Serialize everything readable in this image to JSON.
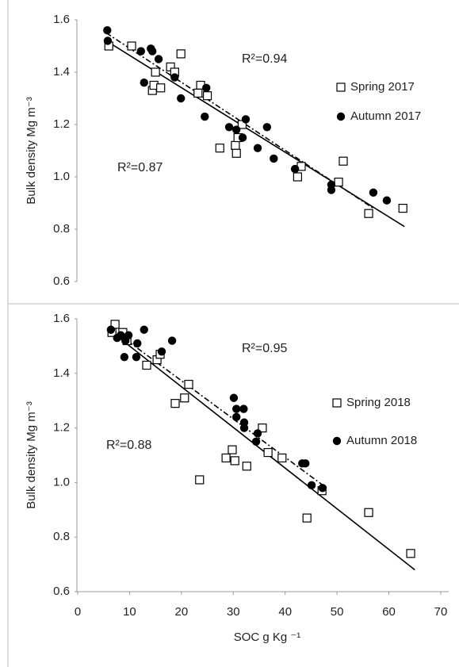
{
  "chart_data": [
    {
      "type": "scatter",
      "ylabel": "Bulk density Mg m⁻³",
      "xlim": [
        0,
        70
      ],
      "ylim": [
        0.6,
        1.6
      ],
      "yticks": [
        0.6,
        0.8,
        {
          "value": 1,
          "label": "1.0"
        },
        1.2,
        1.4,
        1.6
      ],
      "annotations": [
        "R²=0.94",
        "R²=0.87"
      ],
      "series": [
        {
          "name": "Spring 2017",
          "marker": "square",
          "color": "#000000",
          "x": [
            6,
            10.4,
            15,
            14.4,
            14.7,
            16,
            17.9,
            18.7,
            19.9,
            23.7,
            24,
            25,
            23.2,
            27.4,
            30.4,
            30.6,
            31.7,
            30.9,
            42.4,
            43.1,
            51.2,
            50.3,
            56.1,
            62.7
          ],
          "values": [
            1.5,
            1.5,
            1.4,
            1.33,
            1.35,
            1.34,
            1.42,
            1.4,
            1.47,
            1.35,
            1.32,
            1.31,
            1.32,
            1.11,
            1.12,
            1.09,
            1.2,
            1.15,
            1.0,
            1.04,
            1.06,
            0.98,
            0.86,
            0.88
          ]
        },
        {
          "name": "Autumn 2017",
          "marker": "circle",
          "color": "#000000",
          "x": [
            5.7,
            5.8,
            12.2,
            14.1,
            14.4,
            15.6,
            12.8,
            18.7,
            19.9,
            24.5,
            24.8,
            29.2,
            30.6,
            31.8,
            32.4,
            34.7,
            36.5,
            37.8,
            41.9,
            48.9,
            48.9,
            57,
            59.6
          ],
          "values": [
            1.56,
            1.52,
            1.48,
            1.49,
            1.48,
            1.45,
            1.36,
            1.38,
            1.3,
            1.23,
            1.34,
            1.19,
            1.18,
            1.15,
            1.22,
            1.11,
            1.19,
            1.07,
            1.03,
            0.97,
            0.95,
            0.94,
            0.91
          ]
        }
      ],
      "trendlines": [
        {
          "style": "dashdot",
          "x": [
            5.5,
            57
          ],
          "values": [
            1.55,
            0.88
          ]
        },
        {
          "style": "solid",
          "x": [
            5.5,
            63
          ],
          "values": [
            1.52,
            0.81
          ]
        }
      ]
    },
    {
      "type": "scatter",
      "ylabel": "Bulk density Mg m⁻³",
      "xlabel": "SOC g Kg ⁻¹",
      "xlim": [
        0,
        70
      ],
      "ylim": [
        0.6,
        1.6
      ],
      "xticks": [
        0,
        10,
        20,
        30,
        40,
        50,
        60,
        70
      ],
      "yticks": [
        0.6,
        0.8,
        {
          "value": 1,
          "label": "1.0"
        },
        1.2,
        1.4,
        1.6
      ],
      "annotations": [
        "R²=0.95",
        "R²=0.88"
      ],
      "series": [
        {
          "name": "Spring 2018",
          "marker": "square",
          "color": "#000000",
          "x": [
            7.2,
            6.6,
            8.7,
            9.5,
            13.3,
            15.3,
            15.9,
            18.8,
            20.6,
            21.4,
            23.5,
            28.6,
            29.8,
            30.3,
            32.6,
            35.6,
            36.7,
            39.4,
            44.2,
            47.1,
            56.1,
            64.2
          ],
          "values": [
            1.58,
            1.55,
            1.55,
            1.52,
            1.43,
            1.45,
            1.47,
            1.29,
            1.31,
            1.36,
            1.01,
            1.09,
            1.12,
            1.08,
            1.06,
            1.2,
            1.11,
            1.09,
            0.87,
            0.97,
            0.89,
            0.74
          ]
        },
        {
          "name": "Autumn 2018",
          "marker": "circle",
          "color": "#000000",
          "x": [
            6.4,
            7.6,
            8.3,
            9.2,
            9.8,
            9,
            11.5,
            12.8,
            11.3,
            16.2,
            18.2,
            30.1,
            30.6,
            30.6,
            32,
            32.1,
            32.1,
            34.7,
            34.4,
            43.3,
            43.9,
            45.1,
            47.2
          ],
          "values": [
            1.56,
            1.53,
            1.54,
            1.52,
            1.54,
            1.46,
            1.51,
            1.56,
            1.46,
            1.48,
            1.52,
            1.31,
            1.27,
            1.24,
            1.27,
            1.22,
            1.2,
            1.18,
            1.15,
            1.07,
            1.07,
            0.99,
            0.98
          ]
        }
      ],
      "trendlines": [
        {
          "style": "dashdot",
          "x": [
            6,
            48
          ],
          "values": [
            1.57,
            0.98
          ]
        },
        {
          "style": "solid",
          "x": [
            6,
            65
          ],
          "values": [
            1.56,
            0.68
          ]
        }
      ]
    }
  ]
}
